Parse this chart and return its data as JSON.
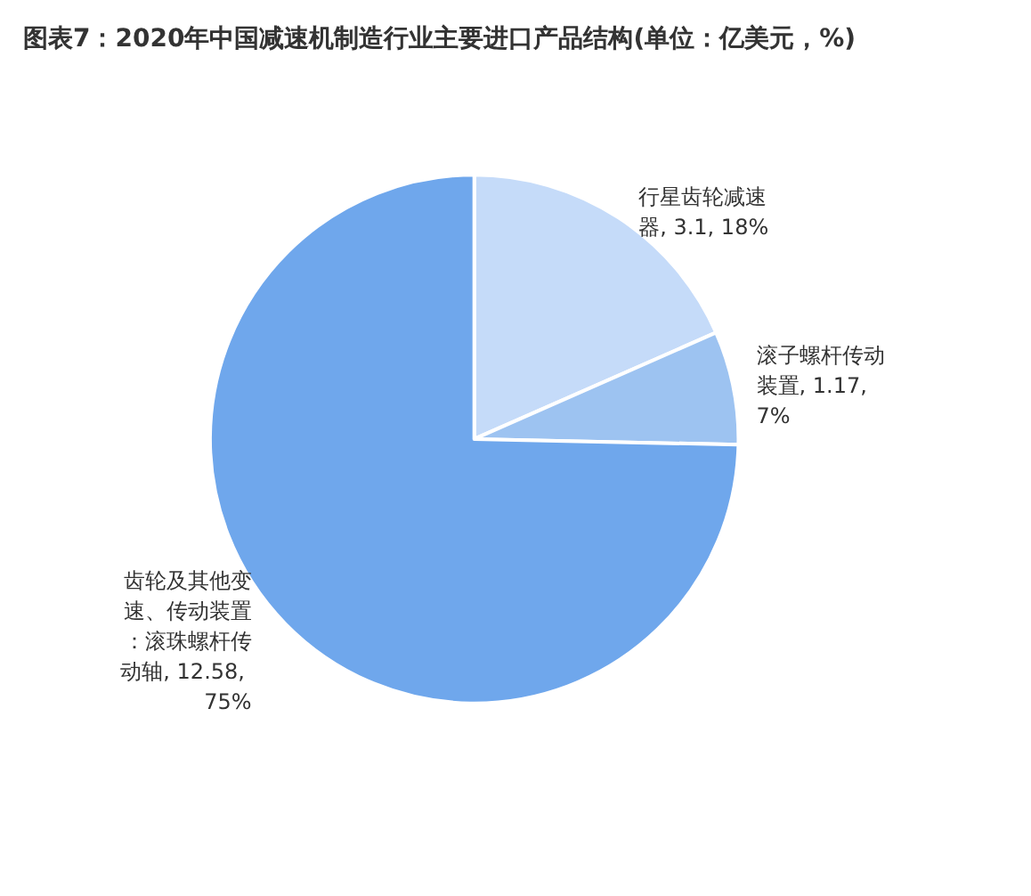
{
  "chart_data": {
    "type": "pie",
    "title": "图表7：2020年中国减速机制造行业主要进口产品结构(单位：亿美元，%)",
    "categories": [
      "行星齿轮减速器",
      "滚子螺杆传动装置",
      "齿轮及其他变速、传动装置：滚珠螺杆传动轴"
    ],
    "values": [
      3.1,
      1.17,
      12.58
    ],
    "value_labels": [
      "3.1, 18%",
      "1.17, 7%",
      "12.58, 75%"
    ],
    "colors": [
      "#c5dbf9",
      "#9dc3f1",
      "#6fa7ec"
    ]
  }
}
